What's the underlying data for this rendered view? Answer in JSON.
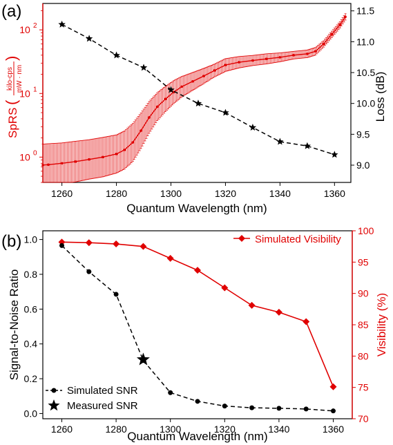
{
  "chart_data": [
    {
      "panel_label": "(a)",
      "type": "line",
      "xlabel": "Quantum Wavelength (nm)",
      "xlim": [
        1253,
        1366
      ],
      "xticks": [
        1260,
        1280,
        1300,
        1320,
        1340,
        1360
      ],
      "left_axis": {
        "label_main": "SpRS",
        "label_fraction_num": "kilo-cps",
        "label_fraction_den": "mW · nm",
        "scale": "log",
        "ylim": [
          0.4,
          260
        ],
        "ticks": [
          {
            "v": 1,
            "label": "10",
            "exp": "0"
          },
          {
            "v": 10,
            "label": "10",
            "exp": "1"
          },
          {
            "v": 100,
            "label": "10",
            "exp": "2"
          }
        ],
        "color": "#e00000"
      },
      "right_axis": {
        "label": "Loss (dB)",
        "ylim": [
          8.72,
          11.62
        ],
        "ticks": [
          9.0,
          9.5,
          10.0,
          10.5,
          11.0,
          11.5
        ],
        "color": "#000000"
      },
      "series": [
        {
          "axis": "left",
          "color": "#e00000",
          "marker": "dot",
          "error_bars": true,
          "x": [
            1253,
            1255,
            1260,
            1265,
            1270,
            1275,
            1280,
            1283,
            1286,
            1289,
            1292,
            1295,
            1298,
            1301,
            1304,
            1308,
            1312,
            1316,
            1320,
            1325,
            1330,
            1335,
            1340,
            1345,
            1350,
            1353,
            1356,
            1359,
            1362,
            1364
          ],
          "y": [
            0.75,
            0.76,
            0.8,
            0.85,
            0.92,
            1.0,
            1.12,
            1.3,
            1.7,
            2.6,
            4.2,
            6.2,
            8.2,
            10.5,
            12.8,
            15.5,
            18.8,
            23,
            28,
            31,
            33,
            35,
            37,
            40,
            42,
            46,
            60,
            85,
            120,
            160
          ],
          "err_low": [
            0.33,
            0.33,
            0.32,
            0.32,
            0.31,
            0.31,
            0.3,
            0.3,
            0.3,
            0.28,
            0.25,
            0.22,
            0.2,
            0.18,
            0.16,
            0.14,
            0.12,
            0.1,
            0.1,
            0.09,
            0.08,
            0.08,
            0.07,
            0.06,
            0.06,
            0.06,
            0.05,
            0.05,
            0.05,
            0.05
          ],
          "err_high": [
            0.33,
            0.33,
            0.32,
            0.32,
            0.31,
            0.31,
            0.3,
            0.3,
            0.3,
            0.28,
            0.25,
            0.22,
            0.2,
            0.18,
            0.16,
            0.14,
            0.12,
            0.1,
            0.1,
            0.09,
            0.08,
            0.08,
            0.07,
            0.06,
            0.06,
            0.06,
            0.05,
            0.05,
            0.05,
            0.05
          ]
        },
        {
          "axis": "right",
          "color": "#000000",
          "marker": "star",
          "linestyle": "dashed",
          "x": [
            1260,
            1270,
            1280,
            1290,
            1300,
            1310,
            1320,
            1330,
            1340,
            1350,
            1360
          ],
          "y": [
            11.28,
            11.05,
            10.78,
            10.58,
            10.22,
            10.0,
            9.85,
            9.61,
            9.38,
            9.31,
            9.17
          ]
        }
      ]
    },
    {
      "panel_label": "(b)",
      "type": "line",
      "xlabel": "Quantum Wavelength (nm)",
      "xlim": [
        1253,
        1367
      ],
      "xticks": [
        1260,
        1280,
        1300,
        1320,
        1340,
        1360
      ],
      "left_axis": {
        "label": "Signal-to-Noise Ratio",
        "ylim": [
          -0.03,
          1.05
        ],
        "ticks": [
          0.0,
          0.2,
          0.4,
          0.6,
          0.8,
          1.0
        ],
        "color": "#000000"
      },
      "right_axis": {
        "label": "Visibility (%)",
        "ylim": [
          70,
          100
        ],
        "ticks": [
          70,
          75,
          80,
          85,
          90,
          95,
          100
        ],
        "color": "#e00000"
      },
      "series": [
        {
          "name": "Simulated Visibility",
          "axis": "right",
          "color": "#e00000",
          "marker": "diamond",
          "linestyle": "solid",
          "x": [
            1260,
            1270,
            1280,
            1290,
            1300,
            1310,
            1320,
            1330,
            1340,
            1350,
            1360
          ],
          "y": [
            98.2,
            98.1,
            97.9,
            97.5,
            95.6,
            93.7,
            90.9,
            88.1,
            87.0,
            85.5,
            75.1
          ]
        },
        {
          "name": "Simulated SNR",
          "axis": "left",
          "color": "#000000",
          "marker": "circle",
          "linestyle": "dashed",
          "x": [
            1260,
            1270,
            1280,
            1290,
            1300,
            1310,
            1320,
            1330,
            1340,
            1350,
            1360
          ],
          "y": [
            0.965,
            0.815,
            0.685,
            0.305,
            0.12,
            0.07,
            0.043,
            0.033,
            0.03,
            0.026,
            0.015
          ]
        },
        {
          "name": "Measured SNR",
          "axis": "left",
          "color": "#000000",
          "marker": "star",
          "linestyle": "none",
          "x": [
            1290
          ],
          "y": [
            0.31
          ]
        }
      ],
      "legend_left": {
        "position": "lower-left"
      },
      "legend_right": {
        "position": "upper-right"
      }
    }
  ]
}
